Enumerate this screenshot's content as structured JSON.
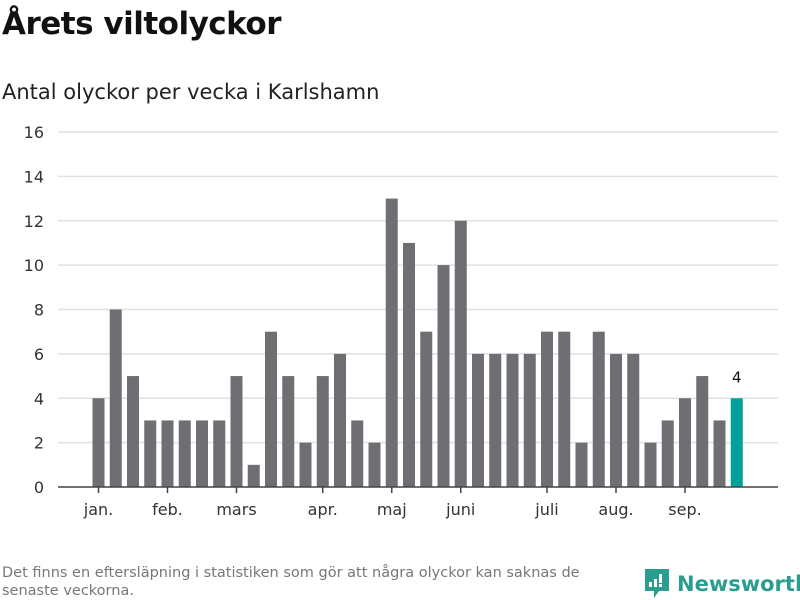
{
  "title": "Årets viltolyckor",
  "subtitle": "Antal olyckor per vecka i Karlshamn",
  "footnote": "Det finns en eftersläpning i statistiken som gör att några olyckor kan saknas de senaste veckorna.",
  "logo": {
    "text": "Newsworthy",
    "color": "#2a9d8f"
  },
  "chart_data": {
    "type": "bar",
    "title": "Antal olyckor per vecka i Karlshamn",
    "xlabel": "",
    "ylabel": "",
    "ylim": [
      0,
      16
    ],
    "yticks": [
      0,
      2,
      4,
      6,
      8,
      10,
      12,
      14,
      16
    ],
    "values": [
      4,
      8,
      5,
      3,
      3,
      3,
      3,
      3,
      5,
      1,
      7,
      5,
      2,
      5,
      6,
      3,
      2,
      13,
      11,
      7,
      10,
      12,
      6,
      6,
      6,
      6,
      7,
      7,
      2,
      7,
      6,
      6,
      2,
      3,
      4,
      5,
      3,
      4
    ],
    "month_labels": [
      {
        "label": "jan.",
        "week_index": 0
      },
      {
        "label": "feb.",
        "week_index": 4
      },
      {
        "label": "mars",
        "week_index": 8
      },
      {
        "label": "apr.",
        "week_index": 13
      },
      {
        "label": "maj",
        "week_index": 17
      },
      {
        "label": "juni",
        "week_index": 21
      },
      {
        "label": "juli",
        "week_index": 26
      },
      {
        "label": "aug.",
        "week_index": 30
      },
      {
        "label": "sep.",
        "week_index": 34
      }
    ],
    "highlight": {
      "index": 37,
      "label": "4",
      "color": "#00a199"
    },
    "bar_color": "#6f6e73",
    "grid": true
  }
}
